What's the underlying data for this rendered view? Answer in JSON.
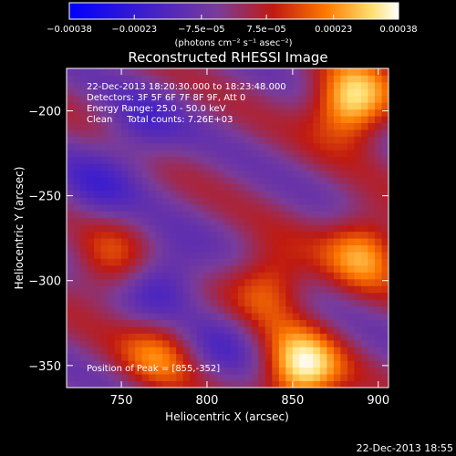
{
  "chart_data": {
    "type": "heatmap",
    "title": "Reconstructed RHESSI Image",
    "xlabel": "Heliocentric X (arcsec)",
    "ylabel": "Heliocentric Y (arcsec)",
    "xlim": [
      718,
      906
    ],
    "ylim": [
      -363,
      -175
    ],
    "x_ticks": [
      750,
      800,
      850,
      900
    ],
    "x_tick_labels": [
      "750",
      "800",
      "850",
      "900"
    ],
    "y_ticks": [
      -200,
      -250,
      -300,
      -350
    ],
    "y_tick_labels": [
      "−200",
      "−250",
      "−300",
      "−350"
    ],
    "colorbar": {
      "range": [
        -0.00038,
        0.00038
      ],
      "ticks": [
        -0.00038,
        -0.00023,
        -7.5e-05,
        7.5e-05,
        0.00023,
        0.00038
      ],
      "tick_labels": [
        "−0.00038",
        "−0.00023",
        "−7.5e−05",
        "7.5e−05",
        "0.00023",
        "0.00038"
      ],
      "unit_label": "(photons cm⁻² s⁻¹ asec⁻²)"
    },
    "annotations": [
      "22-Dec-2013 18:20:30.000 to 18:23:48.000",
      "Detectors: 3F 5F 6F 7F 8F 9F, Att 0",
      "Energy Range: 25.0 - 50.0 keV",
      "Clean     Total counts: 7.26E+03"
    ],
    "peak_text": "Position of Peak = [855,-352]",
    "intensity_features": [
      {
        "x": 884,
        "y": -195,
        "value": 0.00038
      },
      {
        "x": 855,
        "y": -352,
        "value": 0.00038
      },
      {
        "x": 836,
        "y": -302,
        "value": 0.00022
      },
      {
        "x": 892,
        "y": -282,
        "value": 0.00026
      },
      {
        "x": 772,
        "y": -342,
        "value": 0.0002
      },
      {
        "x": 742,
        "y": -290,
        "value": 0.00016
      },
      {
        "x": 762,
        "y": -210,
        "value": -0.00012
      },
      {
        "x": 775,
        "y": -300,
        "value": -0.00018
      },
      {
        "x": 810,
        "y": -335,
        "value": -0.0001
      },
      {
        "x": 735,
        "y": -245,
        "value": -0.00012
      }
    ]
  },
  "footer": {
    "timestamp": "22-Dec-2013 18:55"
  }
}
